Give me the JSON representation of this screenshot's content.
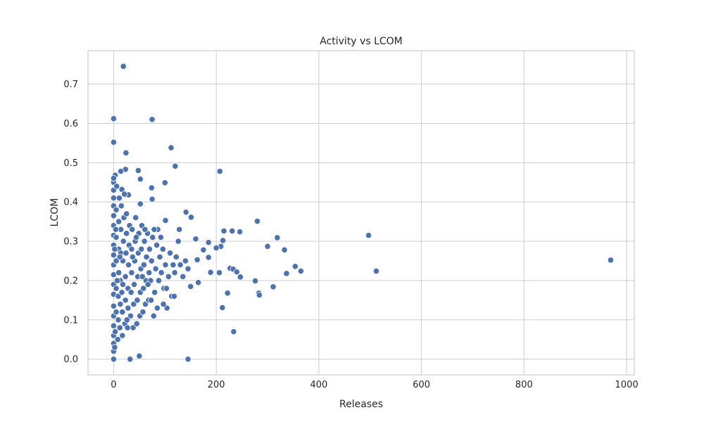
{
  "chart_data": {
    "type": "scatter",
    "title": "Activity vs LCOM",
    "xlabel": "Releases",
    "ylabel": "LCOM",
    "xlim": [
      -50,
      1015
    ],
    "ylim": [
      -0.04,
      0.785
    ],
    "xticks": [
      0,
      200,
      400,
      600,
      800,
      1000
    ],
    "yticks": [
      0.0,
      0.1,
      0.2,
      0.3,
      0.4,
      0.5,
      0.6,
      0.7
    ],
    "xtick_labels": [
      "0",
      "200",
      "400",
      "600",
      "800",
      "1000"
    ],
    "ytick_labels": [
      "0.0",
      "0.1",
      "0.2",
      "0.3",
      "0.4",
      "0.5",
      "0.6",
      "0.7"
    ],
    "grid": true,
    "color": "#4c72b0",
    "points": [
      [
        19,
        0.745
      ],
      [
        0,
        0.612
      ],
      [
        75,
        0.61
      ],
      [
        0,
        0.552
      ],
      [
        112,
        0.538
      ],
      [
        24,
        0.525
      ],
      [
        120,
        0.491
      ],
      [
        23,
        0.483
      ],
      [
        48,
        0.48
      ],
      [
        207,
        0.478
      ],
      [
        14,
        0.478
      ],
      [
        3,
        0.468
      ],
      [
        52,
        0.458
      ],
      [
        100,
        0.449
      ],
      [
        74,
        0.436
      ],
      [
        16,
        0.432
      ],
      [
        22,
        0.418
      ],
      [
        29,
        0.418
      ],
      [
        75,
        0.407
      ],
      [
        52,
        0.395
      ],
      [
        141,
        0.374
      ],
      [
        151,
        0.361
      ],
      [
        101,
        0.353
      ],
      [
        280,
        0.351
      ],
      [
        215,
        0.326
      ],
      [
        231,
        0.326
      ],
      [
        246,
        0.324
      ],
      [
        319,
        0.309
      ],
      [
        213,
        0.302
      ],
      [
        497,
        0.315
      ],
      [
        160,
        0.306
      ],
      [
        185,
        0.297
      ],
      [
        300,
        0.287
      ],
      [
        209,
        0.287
      ],
      [
        200,
        0.283
      ],
      [
        333,
        0.278
      ],
      [
        175,
        0.278
      ],
      [
        185,
        0.259
      ],
      [
        163,
        0.253
      ],
      [
        969,
        0.252
      ],
      [
        354,
        0.236
      ],
      [
        227,
        0.231
      ],
      [
        233,
        0.229
      ],
      [
        240,
        0.222
      ],
      [
        365,
        0.224
      ],
      [
        512,
        0.224
      ],
      [
        206,
        0.22
      ],
      [
        189,
        0.221
      ],
      [
        337,
        0.218
      ],
      [
        247,
        0.209
      ],
      [
        276,
        0.199
      ],
      [
        311,
        0.184
      ],
      [
        165,
        0.195
      ],
      [
        150,
        0.185
      ],
      [
        222,
        0.168
      ],
      [
        283,
        0.168
      ],
      [
        284,
        0.163
      ],
      [
        212,
        0.131
      ],
      [
        234,
        0.07
      ],
      [
        145,
        0.0
      ],
      [
        50,
        0.008
      ],
      [
        32,
        0.0
      ],
      [
        0,
        0.0
      ],
      [
        0,
        0.02
      ],
      [
        0,
        0.04
      ],
      [
        0,
        0.06
      ],
      [
        0,
        0.085
      ],
      [
        0,
        0.11
      ],
      [
        0,
        0.135
      ],
      [
        0,
        0.165
      ],
      [
        0,
        0.19
      ],
      [
        0,
        0.215
      ],
      [
        0,
        0.24
      ],
      [
        0,
        0.265
      ],
      [
        0,
        0.29
      ],
      [
        0,
        0.315
      ],
      [
        0,
        0.34
      ],
      [
        0,
        0.365
      ],
      [
        0,
        0.39
      ],
      [
        0,
        0.41
      ],
      [
        0,
        0.43
      ],
      [
        0,
        0.45
      ],
      [
        0,
        0.46
      ],
      [
        3,
        0.07
      ],
      [
        5,
        0.12
      ],
      [
        5,
        0.18
      ],
      [
        5,
        0.25
      ],
      [
        5,
        0.31
      ],
      [
        5,
        0.38
      ],
      [
        6,
        0.44
      ],
      [
        8,
        0.05
      ],
      [
        9,
        0.1
      ],
      [
        9,
        0.16
      ],
      [
        10,
        0.22
      ],
      [
        10,
        0.28
      ],
      [
        10,
        0.35
      ],
      [
        11,
        0.41
      ],
      [
        12,
        0.08
      ],
      [
        13,
        0.14
      ],
      [
        13,
        0.2
      ],
      [
        14,
        0.27
      ],
      [
        14,
        0.33
      ],
      [
        15,
        0.39
      ],
      [
        17,
        0.06
      ],
      [
        17,
        0.12
      ],
      [
        18,
        0.19
      ],
      [
        18,
        0.25
      ],
      [
        19,
        0.3
      ],
      [
        20,
        0.36
      ],
      [
        21,
        0.42
      ],
      [
        22,
        0.09
      ],
      [
        23,
        0.15
      ],
      [
        23,
        0.21
      ],
      [
        24,
        0.27
      ],
      [
        25,
        0.32
      ],
      [
        25,
        0.37
      ],
      [
        27,
        0.08
      ],
      [
        28,
        0.13
      ],
      [
        28,
        0.18
      ],
      [
        29,
        0.24
      ],
      [
        30,
        0.29
      ],
      [
        31,
        0.34
      ],
      [
        33,
        0.11
      ],
      [
        34,
        0.17
      ],
      [
        35,
        0.22
      ],
      [
        35,
        0.28
      ],
      [
        36,
        0.33
      ],
      [
        38,
        0.08
      ],
      [
        39,
        0.14
      ],
      [
        40,
        0.19
      ],
      [
        41,
        0.25
      ],
      [
        42,
        0.3
      ],
      [
        43,
        0.36
      ],
      [
        45,
        0.09
      ],
      [
        46,
        0.15
      ],
      [
        47,
        0.21
      ],
      [
        48,
        0.27
      ],
      [
        49,
        0.32
      ],
      [
        51,
        0.11
      ],
      [
        52,
        0.17
      ],
      [
        53,
        0.23
      ],
      [
        54,
        0.28
      ],
      [
        55,
        0.34
      ],
      [
        57,
        0.12
      ],
      [
        58,
        0.18
      ],
      [
        59,
        0.24
      ],
      [
        60,
        0.3
      ],
      [
        62,
        0.14
      ],
      [
        63,
        0.2
      ],
      [
        64,
        0.26
      ],
      [
        66,
        0.32
      ],
      [
        68,
        0.15
      ],
      [
        69,
        0.22
      ],
      [
        70,
        0.28
      ],
      [
        72,
        0.2
      ],
      [
        74,
        0.25
      ],
      [
        76,
        0.31
      ],
      [
        78,
        0.11
      ],
      [
        80,
        0.17
      ],
      [
        82,
        0.23
      ],
      [
        84,
        0.29
      ],
      [
        86,
        0.33
      ],
      [
        88,
        0.2
      ],
      [
        90,
        0.26
      ],
      [
        93,
        0.22
      ],
      [
        96,
        0.28
      ],
      [
        98,
        0.18
      ],
      [
        101,
        0.24
      ],
      [
        104,
        0.13
      ],
      [
        107,
        0.21
      ],
      [
        110,
        0.27
      ],
      [
        113,
        0.16
      ],
      [
        116,
        0.24
      ],
      [
        119,
        0.22
      ],
      [
        122,
        0.26
      ],
      [
        126,
        0.3
      ],
      [
        130,
        0.24
      ],
      [
        135,
        0.21
      ],
      [
        140,
        0.25
      ],
      [
        145,
        0.23
      ],
      [
        2,
        0.03
      ],
      [
        2,
        0.28
      ],
      [
        4,
        0.33
      ],
      [
        7,
        0.2
      ],
      [
        12,
        0.26
      ],
      [
        16,
        0.17
      ],
      [
        26,
        0.1
      ],
      [
        37,
        0.26
      ],
      [
        44,
        0.31
      ],
      [
        56,
        0.21
      ],
      [
        61,
        0.33
      ],
      [
        67,
        0.19
      ],
      [
        73,
        0.15
      ],
      [
        79,
        0.33
      ],
      [
        85,
        0.13
      ],
      [
        92,
        0.31
      ],
      [
        97,
        0.14
      ],
      [
        103,
        0.18
      ],
      [
        118,
        0.16
      ],
      [
        128,
        0.33
      ]
    ]
  }
}
